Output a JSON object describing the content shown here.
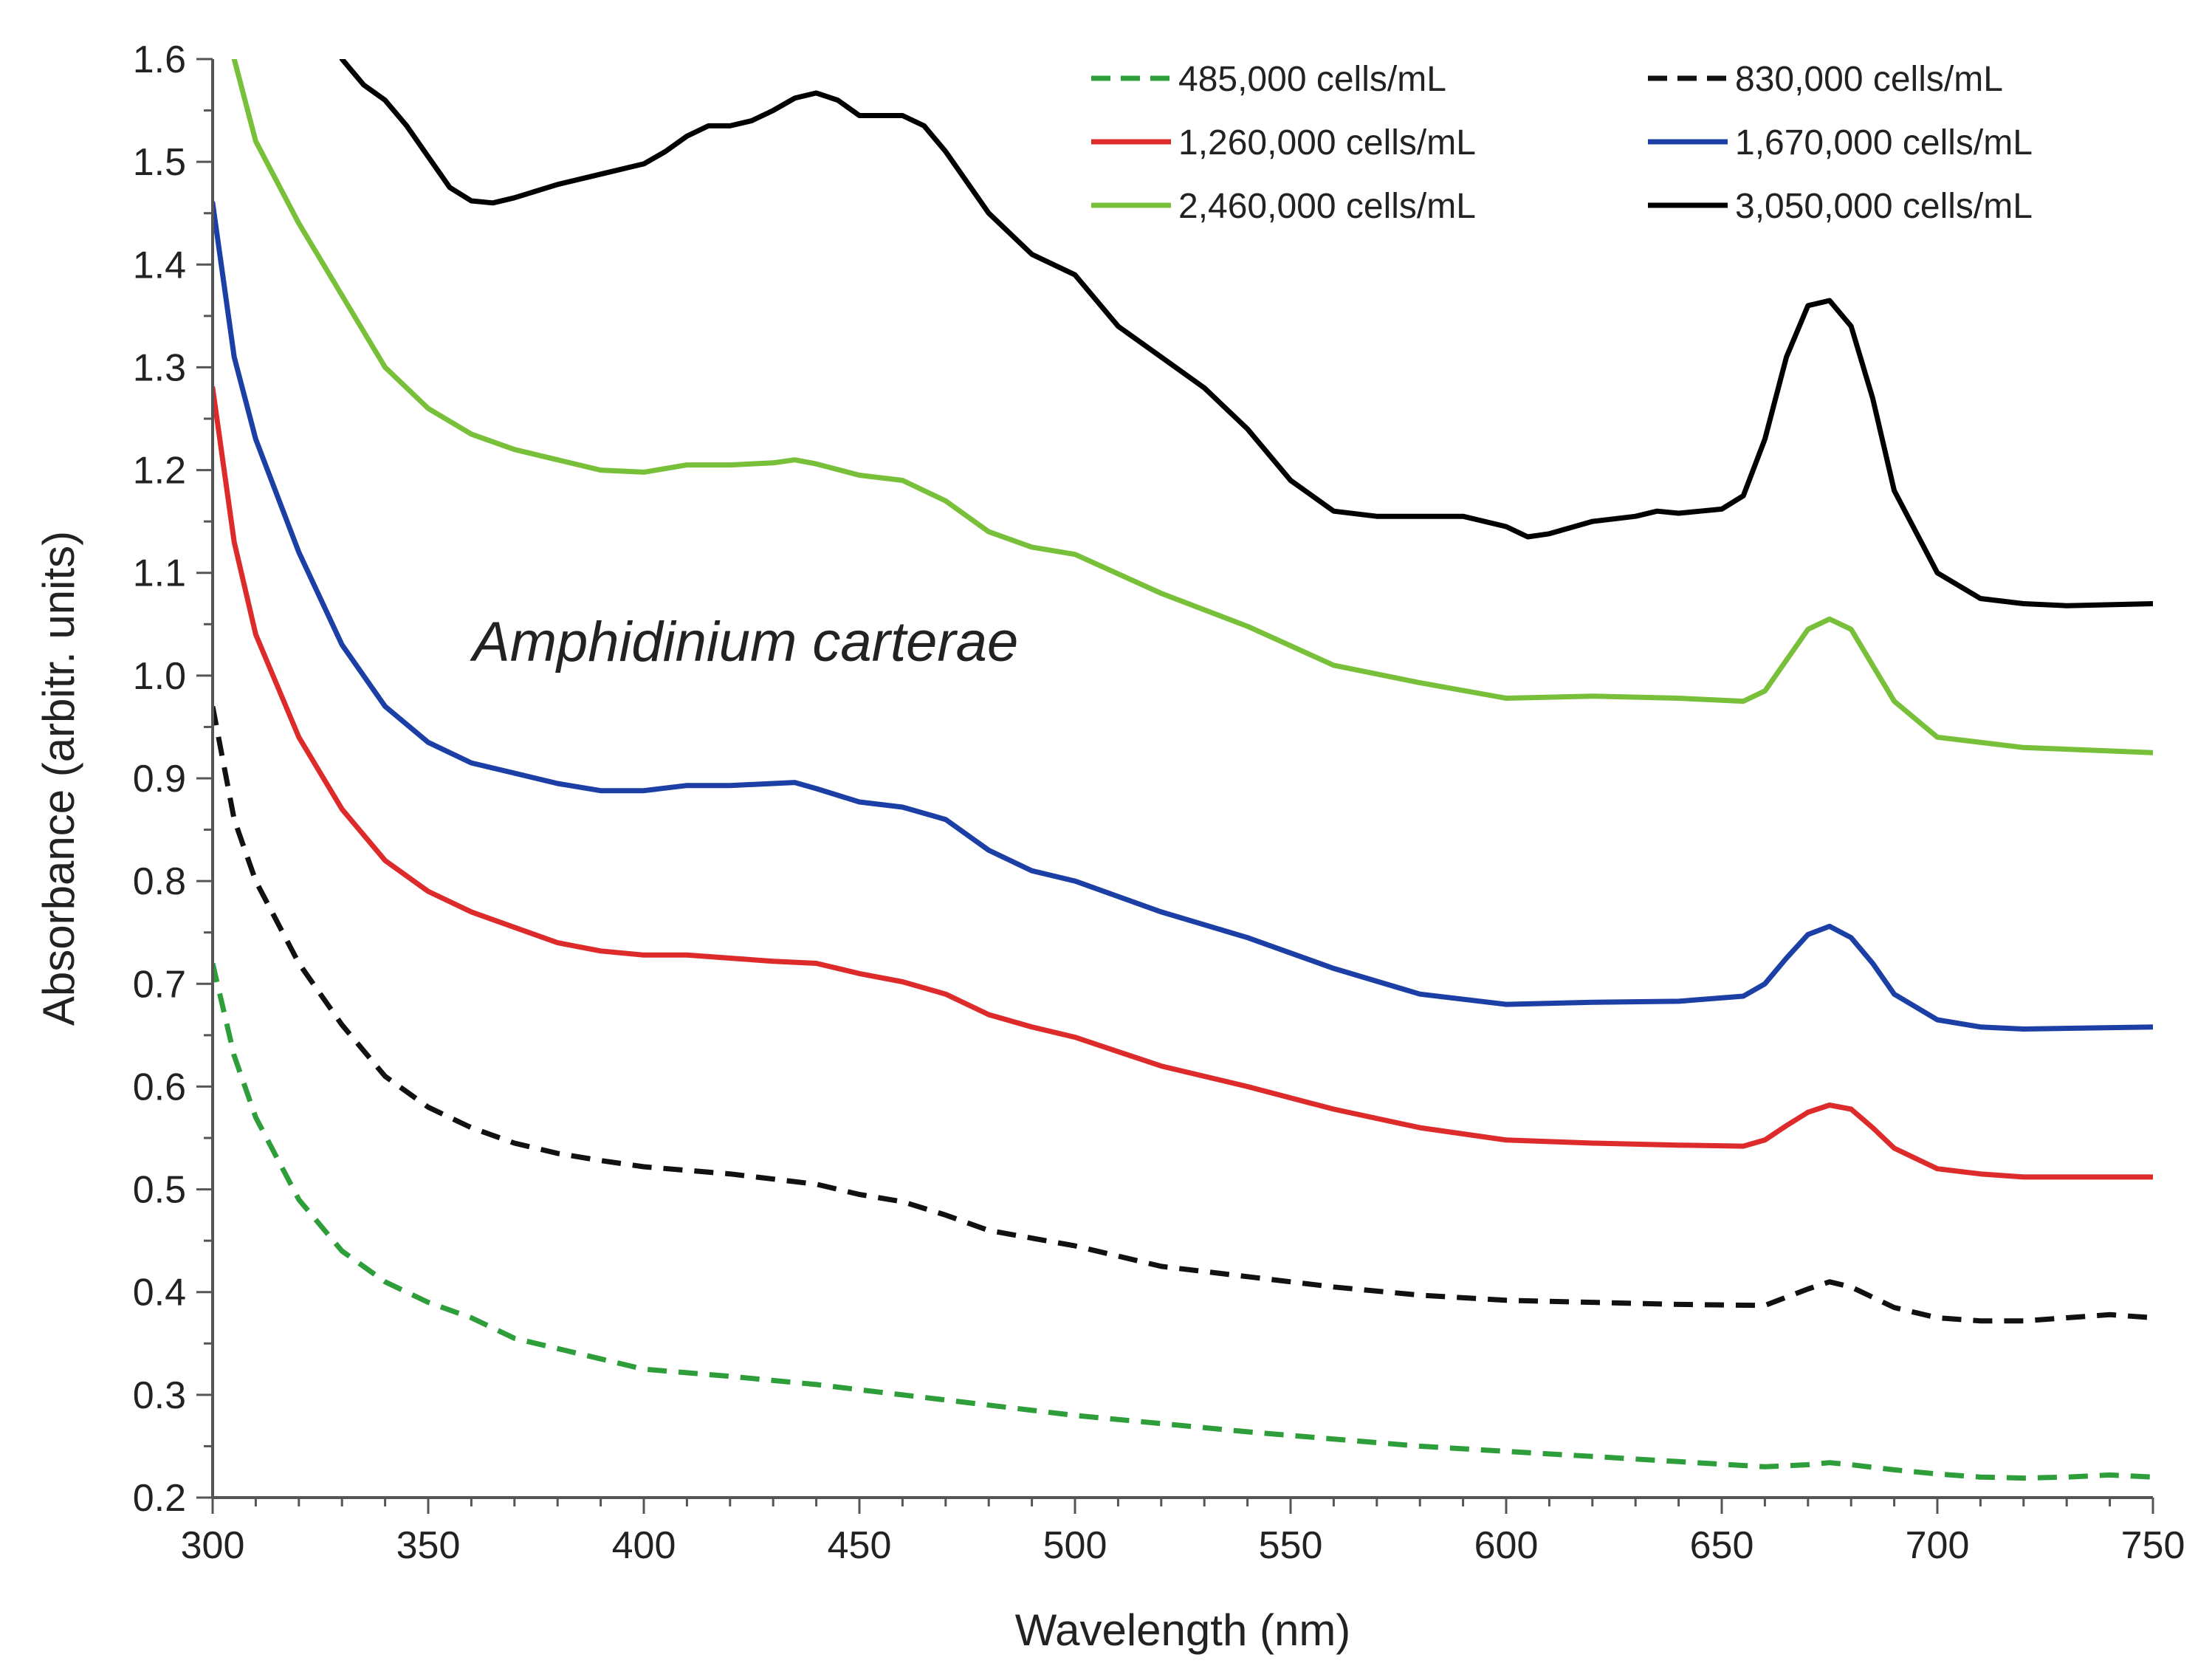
{
  "chart_data": {
    "type": "line",
    "title": "",
    "annotation": "Amphidinium carterae",
    "xlabel": "Wavelength (nm)",
    "ylabel": "Absorbance (arbitr. units)",
    "xlim": [
      300,
      750
    ],
    "ylim": [
      0.2,
      1.6
    ],
    "x_ticks": [
      300,
      350,
      400,
      450,
      500,
      550,
      600,
      650,
      700,
      750
    ],
    "x_tick_labels": [
      "300",
      "350",
      "400",
      "450",
      "500",
      "550",
      "600",
      "650",
      "700",
      "750"
    ],
    "y_ticks": [
      0.2,
      0.3,
      0.4,
      0.5,
      0.6,
      0.7,
      0.8,
      0.9,
      1.0,
      1.1,
      1.2,
      1.3,
      1.4,
      1.5,
      1.6
    ],
    "y_tick_labels": [
      "0.2",
      "0.3",
      "0.4",
      "0.5",
      "0.6",
      "0.7",
      "0.8",
      "0.9",
      "1.0",
      "1.1",
      "1.2",
      "1.3",
      "1.4",
      "1.5",
      "1.6"
    ],
    "grid": false,
    "legend_position": "top-right",
    "series": [
      {
        "name": "485,000 cells/mL",
        "color": "#2e9e3a",
        "dashed": true,
        "x": [
          300,
          305,
          310,
          320,
          330,
          340,
          350,
          360,
          370,
          380,
          390,
          400,
          420,
          440,
          460,
          480,
          500,
          520,
          540,
          560,
          580,
          600,
          620,
          640,
          660,
          670,
          675,
          680,
          690,
          700,
          710,
          720,
          730,
          740,
          750
        ],
        "values": [
          0.72,
          0.63,
          0.57,
          0.49,
          0.44,
          0.41,
          0.39,
          0.375,
          0.355,
          0.345,
          0.335,
          0.325,
          0.318,
          0.31,
          0.3,
          0.29,
          0.28,
          0.272,
          0.264,
          0.257,
          0.25,
          0.245,
          0.24,
          0.235,
          0.23,
          0.232,
          0.234,
          0.232,
          0.227,
          0.223,
          0.22,
          0.219,
          0.22,
          0.222,
          0.22
        ]
      },
      {
        "name": "830,000 cells/mL",
        "color": "#111111",
        "dashed": true,
        "x": [
          300,
          305,
          310,
          320,
          330,
          340,
          350,
          360,
          370,
          380,
          390,
          400,
          420,
          440,
          450,
          460,
          470,
          480,
          500,
          520,
          540,
          560,
          580,
          600,
          620,
          640,
          660,
          670,
          675,
          680,
          690,
          700,
          710,
          720,
          730,
          740,
          750
        ],
        "values": [
          0.97,
          0.86,
          0.8,
          0.72,
          0.66,
          0.61,
          0.58,
          0.56,
          0.545,
          0.535,
          0.528,
          0.522,
          0.515,
          0.505,
          0.495,
          0.488,
          0.475,
          0.46,
          0.445,
          0.425,
          0.415,
          0.405,
          0.397,
          0.392,
          0.39,
          0.388,
          0.387,
          0.403,
          0.41,
          0.405,
          0.385,
          0.375,
          0.372,
          0.372,
          0.375,
          0.378,
          0.375
        ]
      },
      {
        "name": "1,260,000 cells/mL",
        "color": "#dd2a2a",
        "dashed": false,
        "x": [
          300,
          305,
          310,
          320,
          330,
          340,
          350,
          360,
          370,
          380,
          390,
          400,
          410,
          420,
          430,
          440,
          450,
          460,
          470,
          480,
          490,
          500,
          520,
          540,
          560,
          580,
          600,
          620,
          640,
          655,
          660,
          665,
          670,
          675,
          680,
          685,
          690,
          700,
          710,
          720,
          750
        ],
        "values": [
          1.28,
          1.13,
          1.04,
          0.94,
          0.87,
          0.82,
          0.79,
          0.77,
          0.755,
          0.74,
          0.732,
          0.728,
          0.728,
          0.725,
          0.722,
          0.72,
          0.71,
          0.702,
          0.69,
          0.67,
          0.658,
          0.648,
          0.62,
          0.6,
          0.578,
          0.56,
          0.548,
          0.545,
          0.543,
          0.542,
          0.548,
          0.562,
          0.575,
          0.582,
          0.578,
          0.56,
          0.54,
          0.52,
          0.515,
          0.512,
          0.512
        ]
      },
      {
        "name": "1,670,000 cells/mL",
        "color": "#1c3fa6",
        "dashed": false,
        "x": [
          300,
          305,
          310,
          320,
          330,
          340,
          350,
          360,
          370,
          380,
          390,
          400,
          410,
          420,
          430,
          435,
          440,
          450,
          460,
          470,
          480,
          490,
          500,
          520,
          540,
          560,
          580,
          600,
          620,
          640,
          655,
          660,
          665,
          670,
          675,
          680,
          685,
          690,
          700,
          710,
          720,
          750
        ],
        "values": [
          1.46,
          1.31,
          1.23,
          1.12,
          1.03,
          0.97,
          0.935,
          0.915,
          0.905,
          0.895,
          0.888,
          0.888,
          0.893,
          0.893,
          0.895,
          0.896,
          0.89,
          0.877,
          0.872,
          0.86,
          0.83,
          0.81,
          0.8,
          0.77,
          0.745,
          0.715,
          0.69,
          0.68,
          0.682,
          0.683,
          0.688,
          0.7,
          0.725,
          0.748,
          0.756,
          0.745,
          0.72,
          0.69,
          0.665,
          0.658,
          0.656,
          0.658
        ]
      },
      {
        "name": "2,460,000 cells/mL",
        "color": "#78c03a",
        "dashed": false,
        "x": [
          305,
          310,
          320,
          330,
          340,
          350,
          360,
          370,
          380,
          390,
          400,
          410,
          420,
          430,
          435,
          440,
          450,
          460,
          470,
          480,
          490,
          500,
          520,
          540,
          560,
          580,
          600,
          620,
          640,
          655,
          660,
          665,
          670,
          675,
          680,
          685,
          690,
          700,
          720,
          750
        ],
        "values": [
          1.6,
          1.52,
          1.44,
          1.37,
          1.3,
          1.26,
          1.235,
          1.22,
          1.21,
          1.2,
          1.198,
          1.205,
          1.205,
          1.207,
          1.21,
          1.206,
          1.195,
          1.19,
          1.17,
          1.14,
          1.125,
          1.118,
          1.08,
          1.048,
          1.01,
          0.993,
          0.978,
          0.98,
          0.978,
          0.975,
          0.985,
          1.015,
          1.045,
          1.055,
          1.045,
          1.01,
          0.975,
          0.94,
          0.93,
          0.925
        ]
      },
      {
        "name": "3,050,000 cells/mL",
        "color": "#000000",
        "dashed": false,
        "x": [
          330,
          335,
          340,
          345,
          350,
          355,
          360,
          365,
          370,
          380,
          390,
          400,
          405,
          410,
          415,
          420,
          425,
          430,
          435,
          440,
          445,
          450,
          460,
          465,
          470,
          480,
          490,
          500,
          510,
          520,
          530,
          540,
          550,
          560,
          570,
          580,
          590,
          600,
          605,
          610,
          620,
          630,
          635,
          640,
          645,
          650,
          655,
          660,
          665,
          670,
          675,
          680,
          685,
          690,
          700,
          710,
          720,
          730,
          750
        ],
        "values": [
          1.6,
          1.575,
          1.56,
          1.535,
          1.505,
          1.475,
          1.462,
          1.46,
          1.465,
          1.478,
          1.488,
          1.498,
          1.51,
          1.525,
          1.535,
          1.535,
          1.54,
          1.55,
          1.562,
          1.567,
          1.56,
          1.545,
          1.545,
          1.535,
          1.51,
          1.45,
          1.41,
          1.39,
          1.34,
          1.31,
          1.28,
          1.24,
          1.19,
          1.16,
          1.155,
          1.155,
          1.155,
          1.145,
          1.135,
          1.138,
          1.15,
          1.155,
          1.16,
          1.158,
          1.16,
          1.162,
          1.175,
          1.23,
          1.31,
          1.36,
          1.365,
          1.34,
          1.27,
          1.18,
          1.1,
          1.075,
          1.07,
          1.068,
          1.07
        ]
      }
    ]
  }
}
